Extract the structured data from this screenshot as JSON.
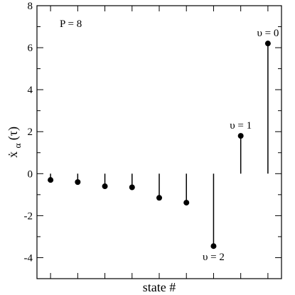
{
  "chart_data": {
    "type": "scatter",
    "style": "stem",
    "xlabel": "state #",
    "ylabel_main": "ẋ",
    "ylabel_sub": "α",
    "ylabel_arg": "(τ)",
    "ylim": [
      -5,
      8
    ],
    "yticks": [
      -4,
      -2,
      0,
      2,
      4,
      6,
      8
    ],
    "xlim": [
      0.5,
      9.5
    ],
    "x_ticks_labeled": false,
    "x": [
      1,
      2,
      3,
      4,
      5,
      6,
      7,
      8,
      9
    ],
    "y": [
      -0.3,
      -0.4,
      -0.6,
      -0.65,
      -1.15,
      -1.38,
      -3.45,
      1.8,
      6.2
    ],
    "stem_tops": [
      0,
      0,
      0,
      0,
      0,
      0,
      0,
      0,
      0
    ],
    "panel_label": "P = 8",
    "annotations": [
      {
        "text": "υ = 2",
        "x": 7,
        "y": -3.45
      },
      {
        "text": "υ = 1",
        "x": 8,
        "y": 1.8
      },
      {
        "text": "υ = 0",
        "x": 9,
        "y": 6.2
      }
    ],
    "color": "#000000"
  }
}
